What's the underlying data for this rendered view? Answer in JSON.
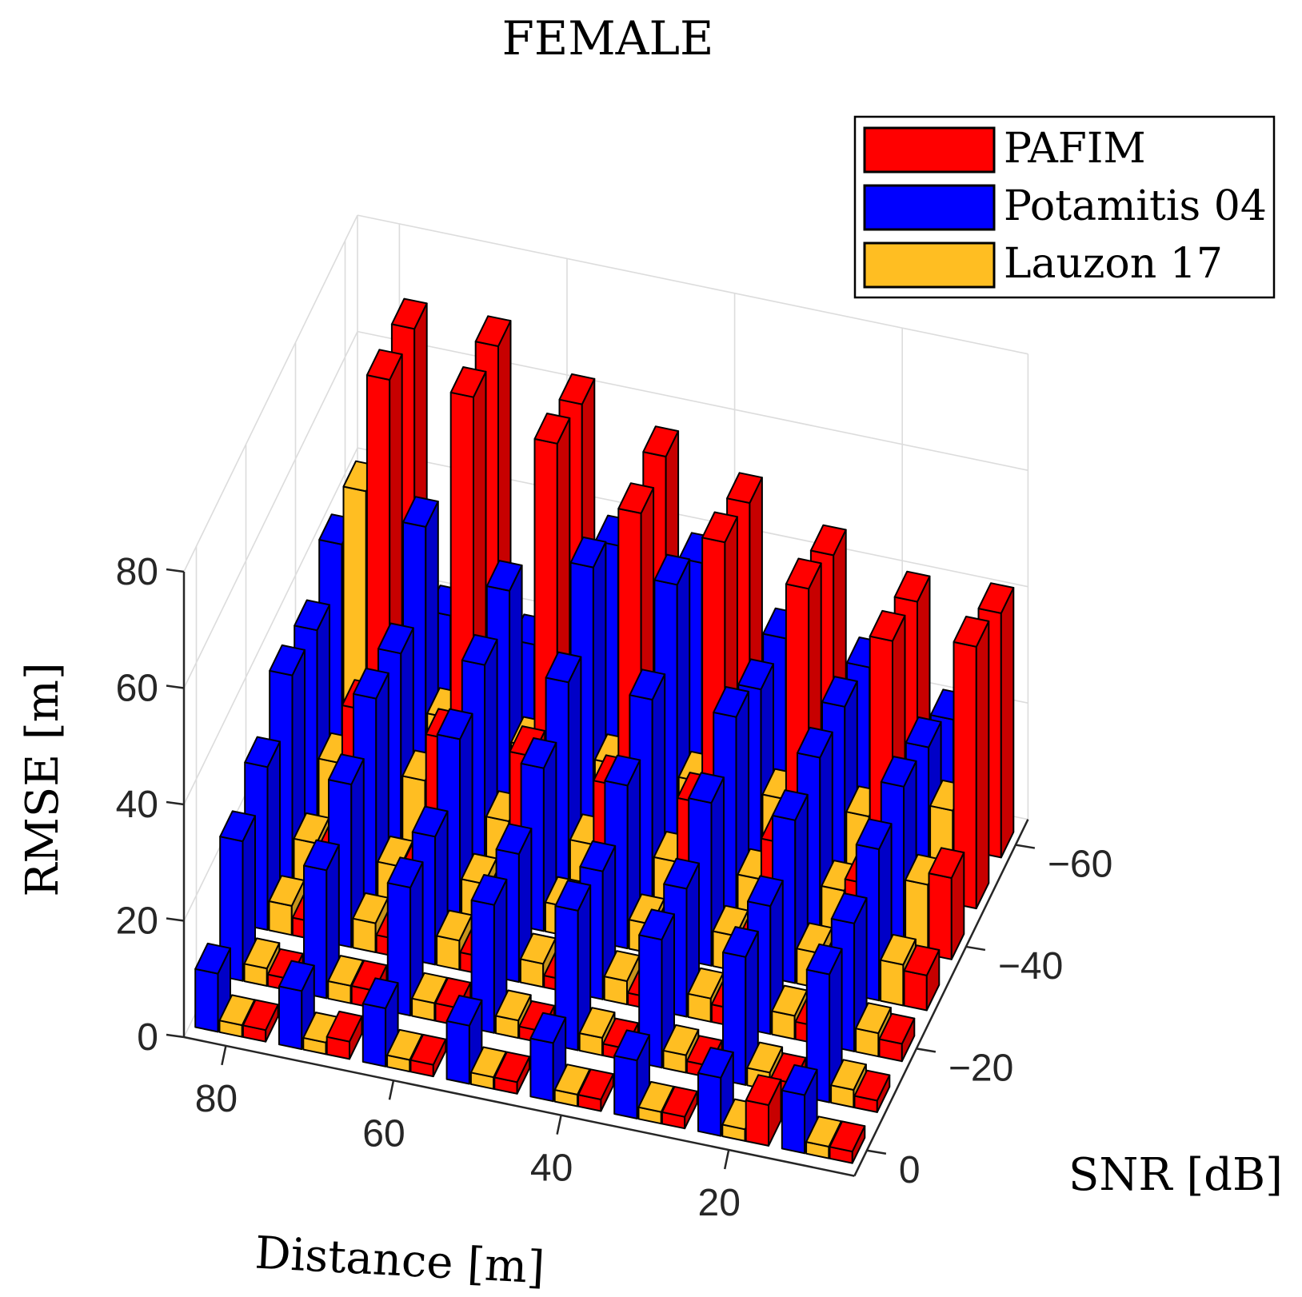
{
  "chart_data": {
    "type": "bar3d",
    "title": "FEMALE",
    "xlabel": "Distance [m]",
    "ylabel": "SNR [dB]",
    "zlabel": "RMSE [m]",
    "zlim": [
      0,
      80
    ],
    "ztick_labels": [
      "0",
      "20",
      "40",
      "60",
      "80"
    ],
    "xtick_labels": [
      "80",
      "60",
      "40",
      "20"
    ],
    "ytick_labels": [
      "0",
      "-20",
      "-40",
      "-60"
    ],
    "distances": [
      80,
      70,
      60,
      50,
      40,
      30,
      20,
      10
    ],
    "snr": [
      0,
      -10,
      -20,
      -30,
      -40,
      -50,
      -60
    ],
    "legend_position": "top-right",
    "series": [
      {
        "name": "PAFIM",
        "color": "#ff0000",
        "values": [
          [
            2,
            2,
            3,
            6,
            22,
            70,
            70
          ],
          [
            3,
            3,
            3,
            6,
            20,
            70,
            70
          ],
          [
            2,
            3,
            3,
            4,
            20,
            65,
            63
          ],
          [
            2,
            2,
            2,
            4,
            18,
            56,
            57
          ],
          [
            2,
            2,
            2,
            4,
            18,
            54,
            52
          ],
          [
            2,
            2,
            3,
            5,
            14,
            49,
            46
          ],
          [
            7,
            2,
            3,
            4,
            10,
            43,
            41
          ],
          [
            2,
            2,
            3,
            6,
            14,
            45,
            42
          ]
        ]
      },
      {
        "name": "Potamitis 04",
        "color": "#0000ff",
        "values": [
          [
            10,
            24,
            28,
            35,
            34,
            40,
            14
          ],
          [
            10,
            22,
            28,
            34,
            33,
            46,
            22
          ],
          [
            10,
            22,
            22,
            30,
            34,
            38,
            20
          ],
          [
            10,
            22,
            22,
            28,
            34,
            45,
            40
          ],
          [
            10,
            24,
            22,
            28,
            34,
            45,
            40
          ],
          [
            10,
            22,
            22,
            28,
            34,
            30,
            30
          ],
          [
            10,
            22,
            22,
            28,
            30,
            30,
            28
          ],
          [
            10,
            22,
            22,
            26,
            28,
            26,
            22
          ]
        ]
      },
      {
        "name": "Lauzon 17",
        "color": "#ffbe22",
        "values": [
          [
            2,
            3,
            5,
            7,
            12,
            50,
            60
          ],
          [
            2,
            3,
            5,
            6,
            12,
            14,
            58
          ],
          [
            2,
            3,
            5,
            6,
            8,
            12,
            28
          ],
          [
            2,
            3,
            4,
            5,
            7,
            12,
            14
          ],
          [
            2,
            3,
            4,
            5,
            7,
            12,
            10
          ],
          [
            2,
            3,
            4,
            6,
            7,
            12,
            12
          ],
          [
            2,
            3,
            4,
            6,
            8,
            12,
            10
          ],
          [
            2,
            3,
            4,
            7,
            12,
            16,
            12
          ]
        ]
      }
    ]
  }
}
